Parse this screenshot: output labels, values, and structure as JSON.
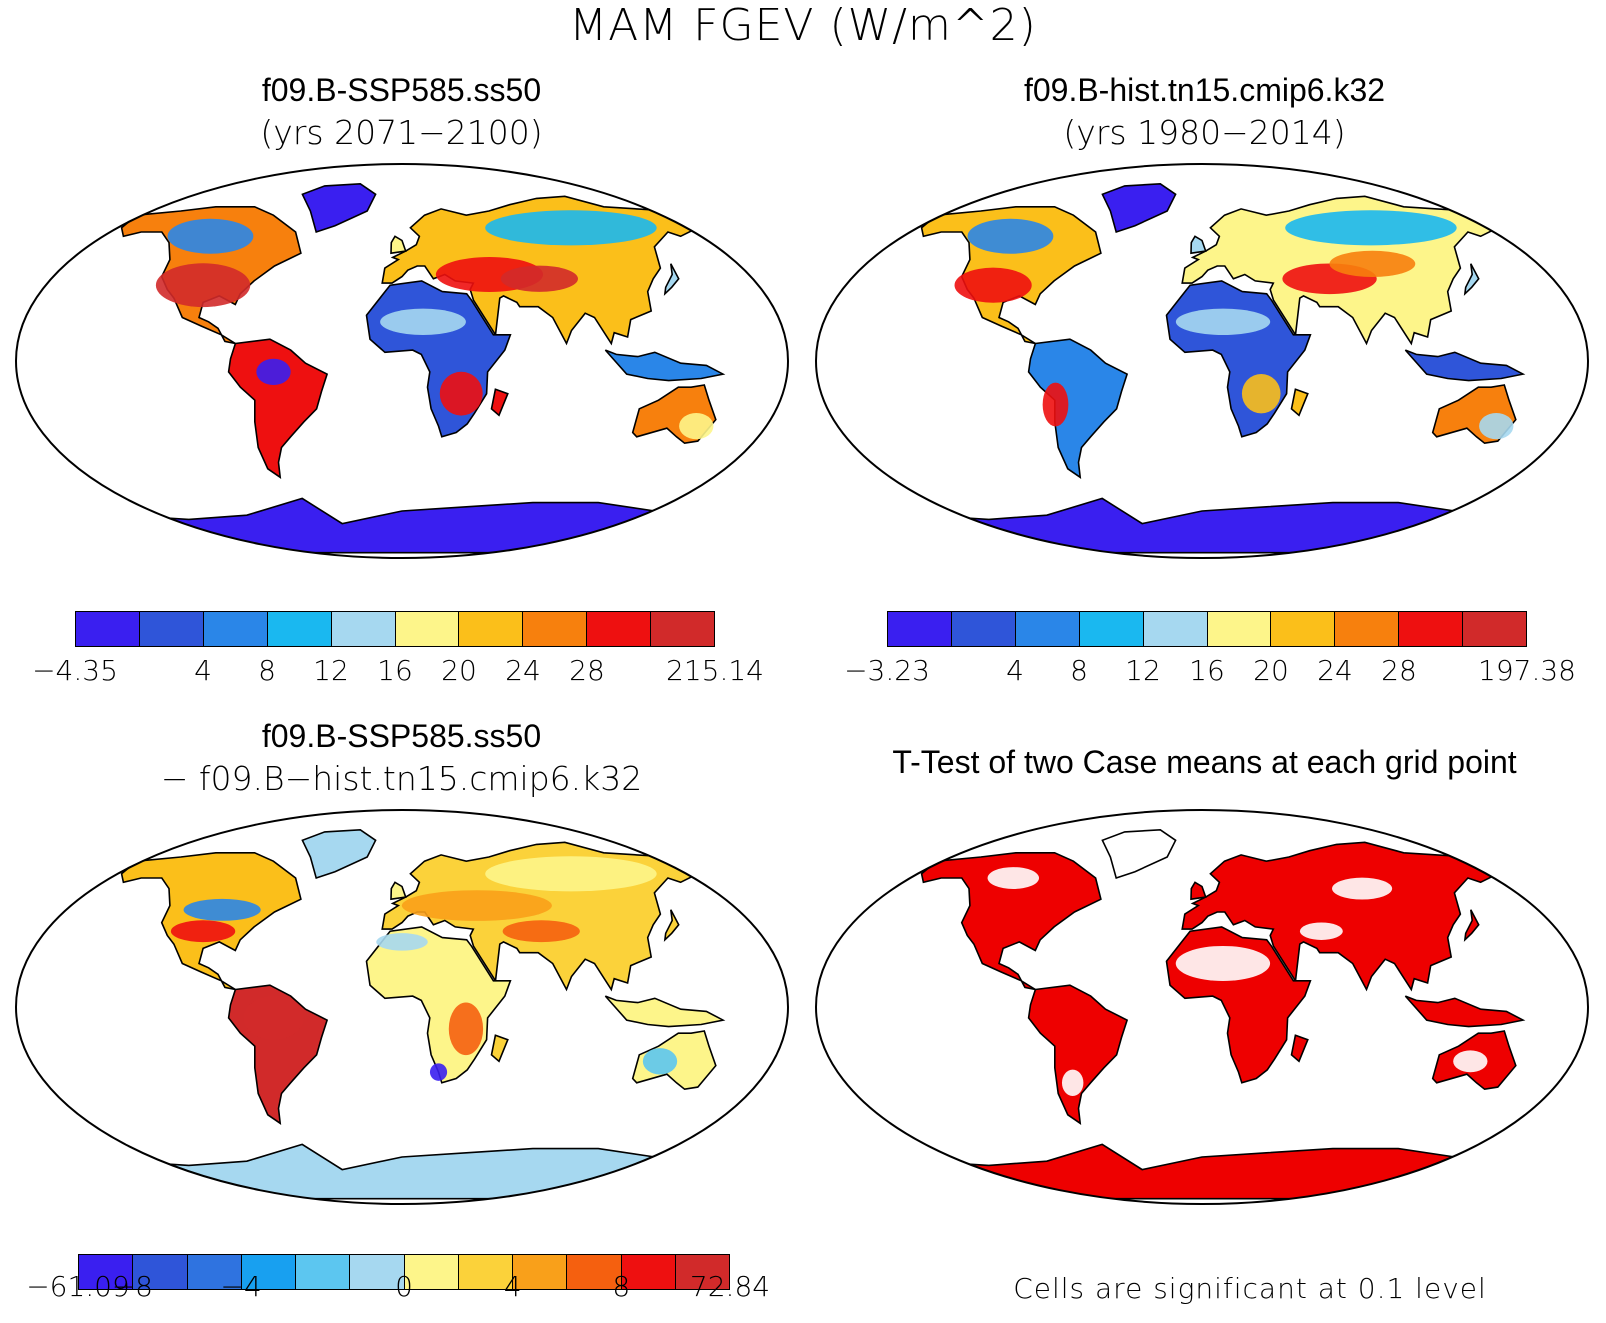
{
  "figure_title": "MAM FGEV (W/m^2)",
  "panels": {
    "top_left": {
      "title": "f09.B-SSP585.ss50",
      "subtitle": "(yrs 2071−2100)",
      "colorbar": {
        "colors": [
          "#3a1ff0",
          "#2f55d9",
          "#2a86e8",
          "#1ab8f0",
          "#a6d8f0",
          "#fdf58a",
          "#fbbf1a",
          "#f7800d",
          "#ee1010",
          "#d12a2a"
        ],
        "ticks": [
          "−4.35",
          "",
          "4",
          "8",
          "12",
          "16",
          "20",
          "24",
          "28",
          "",
          "215.14"
        ]
      }
    },
    "top_right": {
      "title": "f09.B-hist.tn15.cmip6.k32",
      "subtitle": "(yrs 1980−2014)",
      "colorbar": {
        "colors": [
          "#3a1ff0",
          "#2f55d9",
          "#2a86e8",
          "#1ab8f0",
          "#a6d8f0",
          "#fdf58a",
          "#fbbf1a",
          "#f7800d",
          "#ee1010",
          "#d12a2a"
        ],
        "ticks": [
          "−3.23",
          "",
          "4",
          "8",
          "12",
          "16",
          "20",
          "24",
          "28",
          "",
          "197.38"
        ]
      }
    },
    "bottom_left": {
      "title": "f09.B-SSP585.ss50",
      "subtitle": "− f09.B−hist.tn15.cmip6.k32",
      "colorbar": {
        "colors": [
          "#3a1ff0",
          "#2f55d9",
          "#2f73e0",
          "#18a0f0",
          "#5cc6f0",
          "#a6d8f0",
          "#fdf58a",
          "#fbd23a",
          "#f9a01a",
          "#f5600f",
          "#ee1010",
          "#d12a2a"
        ],
        "ticks": [
          "−61.09",
          "−8",
          "",
          "−4",
          "",
          "",
          "0",
          "",
          "4",
          "",
          "8",
          "",
          "72.84"
        ]
      }
    },
    "bottom_right": {
      "title": "T-Test of two Case means at each grid point",
      "note": "Cells are significant at 0.1 level",
      "significant_color": "#ee0000"
    }
  }
}
